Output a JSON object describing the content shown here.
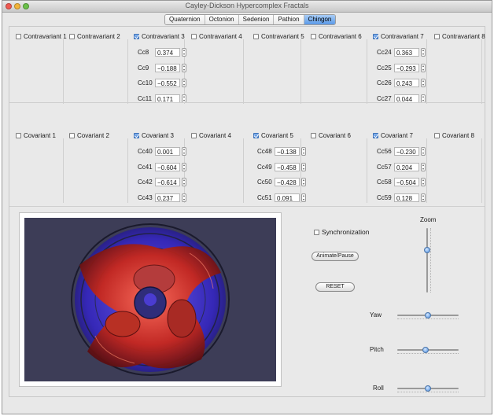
{
  "window": {
    "title": "Cayley-Dickson Hypercomplex Fractals"
  },
  "tabs": [
    {
      "label": "Quaternion",
      "active": false
    },
    {
      "label": "Octonion",
      "active": false
    },
    {
      "label": "Sedenion",
      "active": false
    },
    {
      "label": "Pathion",
      "active": false
    },
    {
      "label": "Chingon",
      "active": true
    }
  ],
  "contravariant": [
    {
      "label": "Contravariant 1",
      "checked": false,
      "params": []
    },
    {
      "label": "Contravariant 2",
      "checked": false,
      "params": []
    },
    {
      "label": "Contravariant 3",
      "checked": true,
      "params": [
        {
          "name": "Cc8",
          "value": "0.374"
        },
        {
          "name": "Cc9",
          "value": "−0.188"
        },
        {
          "name": "Cc10",
          "value": "−0.552"
        },
        {
          "name": "Cc11",
          "value": "0.171"
        }
      ]
    },
    {
      "label": "Contravariant 4",
      "checked": false,
      "params": []
    },
    {
      "label": "Contravariant 5",
      "checked": false,
      "params": []
    },
    {
      "label": "Contravariant 6",
      "checked": false,
      "params": []
    },
    {
      "label": "Contravariant 7",
      "checked": true,
      "params": [
        {
          "name": "Cc24",
          "value": "0.363"
        },
        {
          "name": "Cc25",
          "value": "−0.293"
        },
        {
          "name": "Cc26",
          "value": "0.243"
        },
        {
          "name": "Cc27",
          "value": "0.044"
        }
      ]
    },
    {
      "label": "Contravariant 8",
      "checked": false,
      "params": []
    }
  ],
  "covariant": [
    {
      "label": "Covariant 1",
      "checked": false,
      "params": []
    },
    {
      "label": "Covariant 2",
      "checked": false,
      "params": []
    },
    {
      "label": "Covariant 3",
      "checked": true,
      "params": [
        {
          "name": "Cc40",
          "value": "0.001"
        },
        {
          "name": "Cc41",
          "value": "−0.604"
        },
        {
          "name": "Cc42",
          "value": "−0.614"
        },
        {
          "name": "Cc43",
          "value": "0.237"
        }
      ]
    },
    {
      "label": "Covariant 4",
      "checked": false,
      "params": []
    },
    {
      "label": "Covariant 5",
      "checked": true,
      "params": [
        {
          "name": "Cc48",
          "value": "−0.138"
        },
        {
          "name": "Cc49",
          "value": "−0.458"
        },
        {
          "name": "Cc50",
          "value": "−0.428"
        },
        {
          "name": "Cc51",
          "value": "0.091"
        }
      ]
    },
    {
      "label": "Covariant 6",
      "checked": false,
      "params": []
    },
    {
      "label": "Covariant 7",
      "checked": true,
      "params": [
        {
          "name": "Cc56",
          "value": "−0.230"
        },
        {
          "name": "Cc57",
          "value": "0.204"
        },
        {
          "name": "Cc58",
          "value": "−0.504"
        },
        {
          "name": "Cc59",
          "value": "0.128"
        }
      ]
    },
    {
      "label": "Covariant 8",
      "checked": false,
      "params": []
    }
  ],
  "controls": {
    "synchronization": {
      "label": "Synchronization",
      "checked": false
    },
    "animate_label": "Animate/Pause",
    "reset_label": "RESET",
    "zoom": {
      "label": "Zoom",
      "level": 0.67
    },
    "yaw": {
      "label": "Yaw",
      "level": 0.5
    },
    "pitch": {
      "label": "Pitch",
      "level": 0.45
    },
    "roll": {
      "label": "Roll",
      "level": 0.5
    }
  },
  "colors": {
    "accent": "#5b9ae8",
    "fractal_red": "#c8281c",
    "fractal_blue": "#3424c8",
    "canvas_bg": "#3d3d57"
  }
}
